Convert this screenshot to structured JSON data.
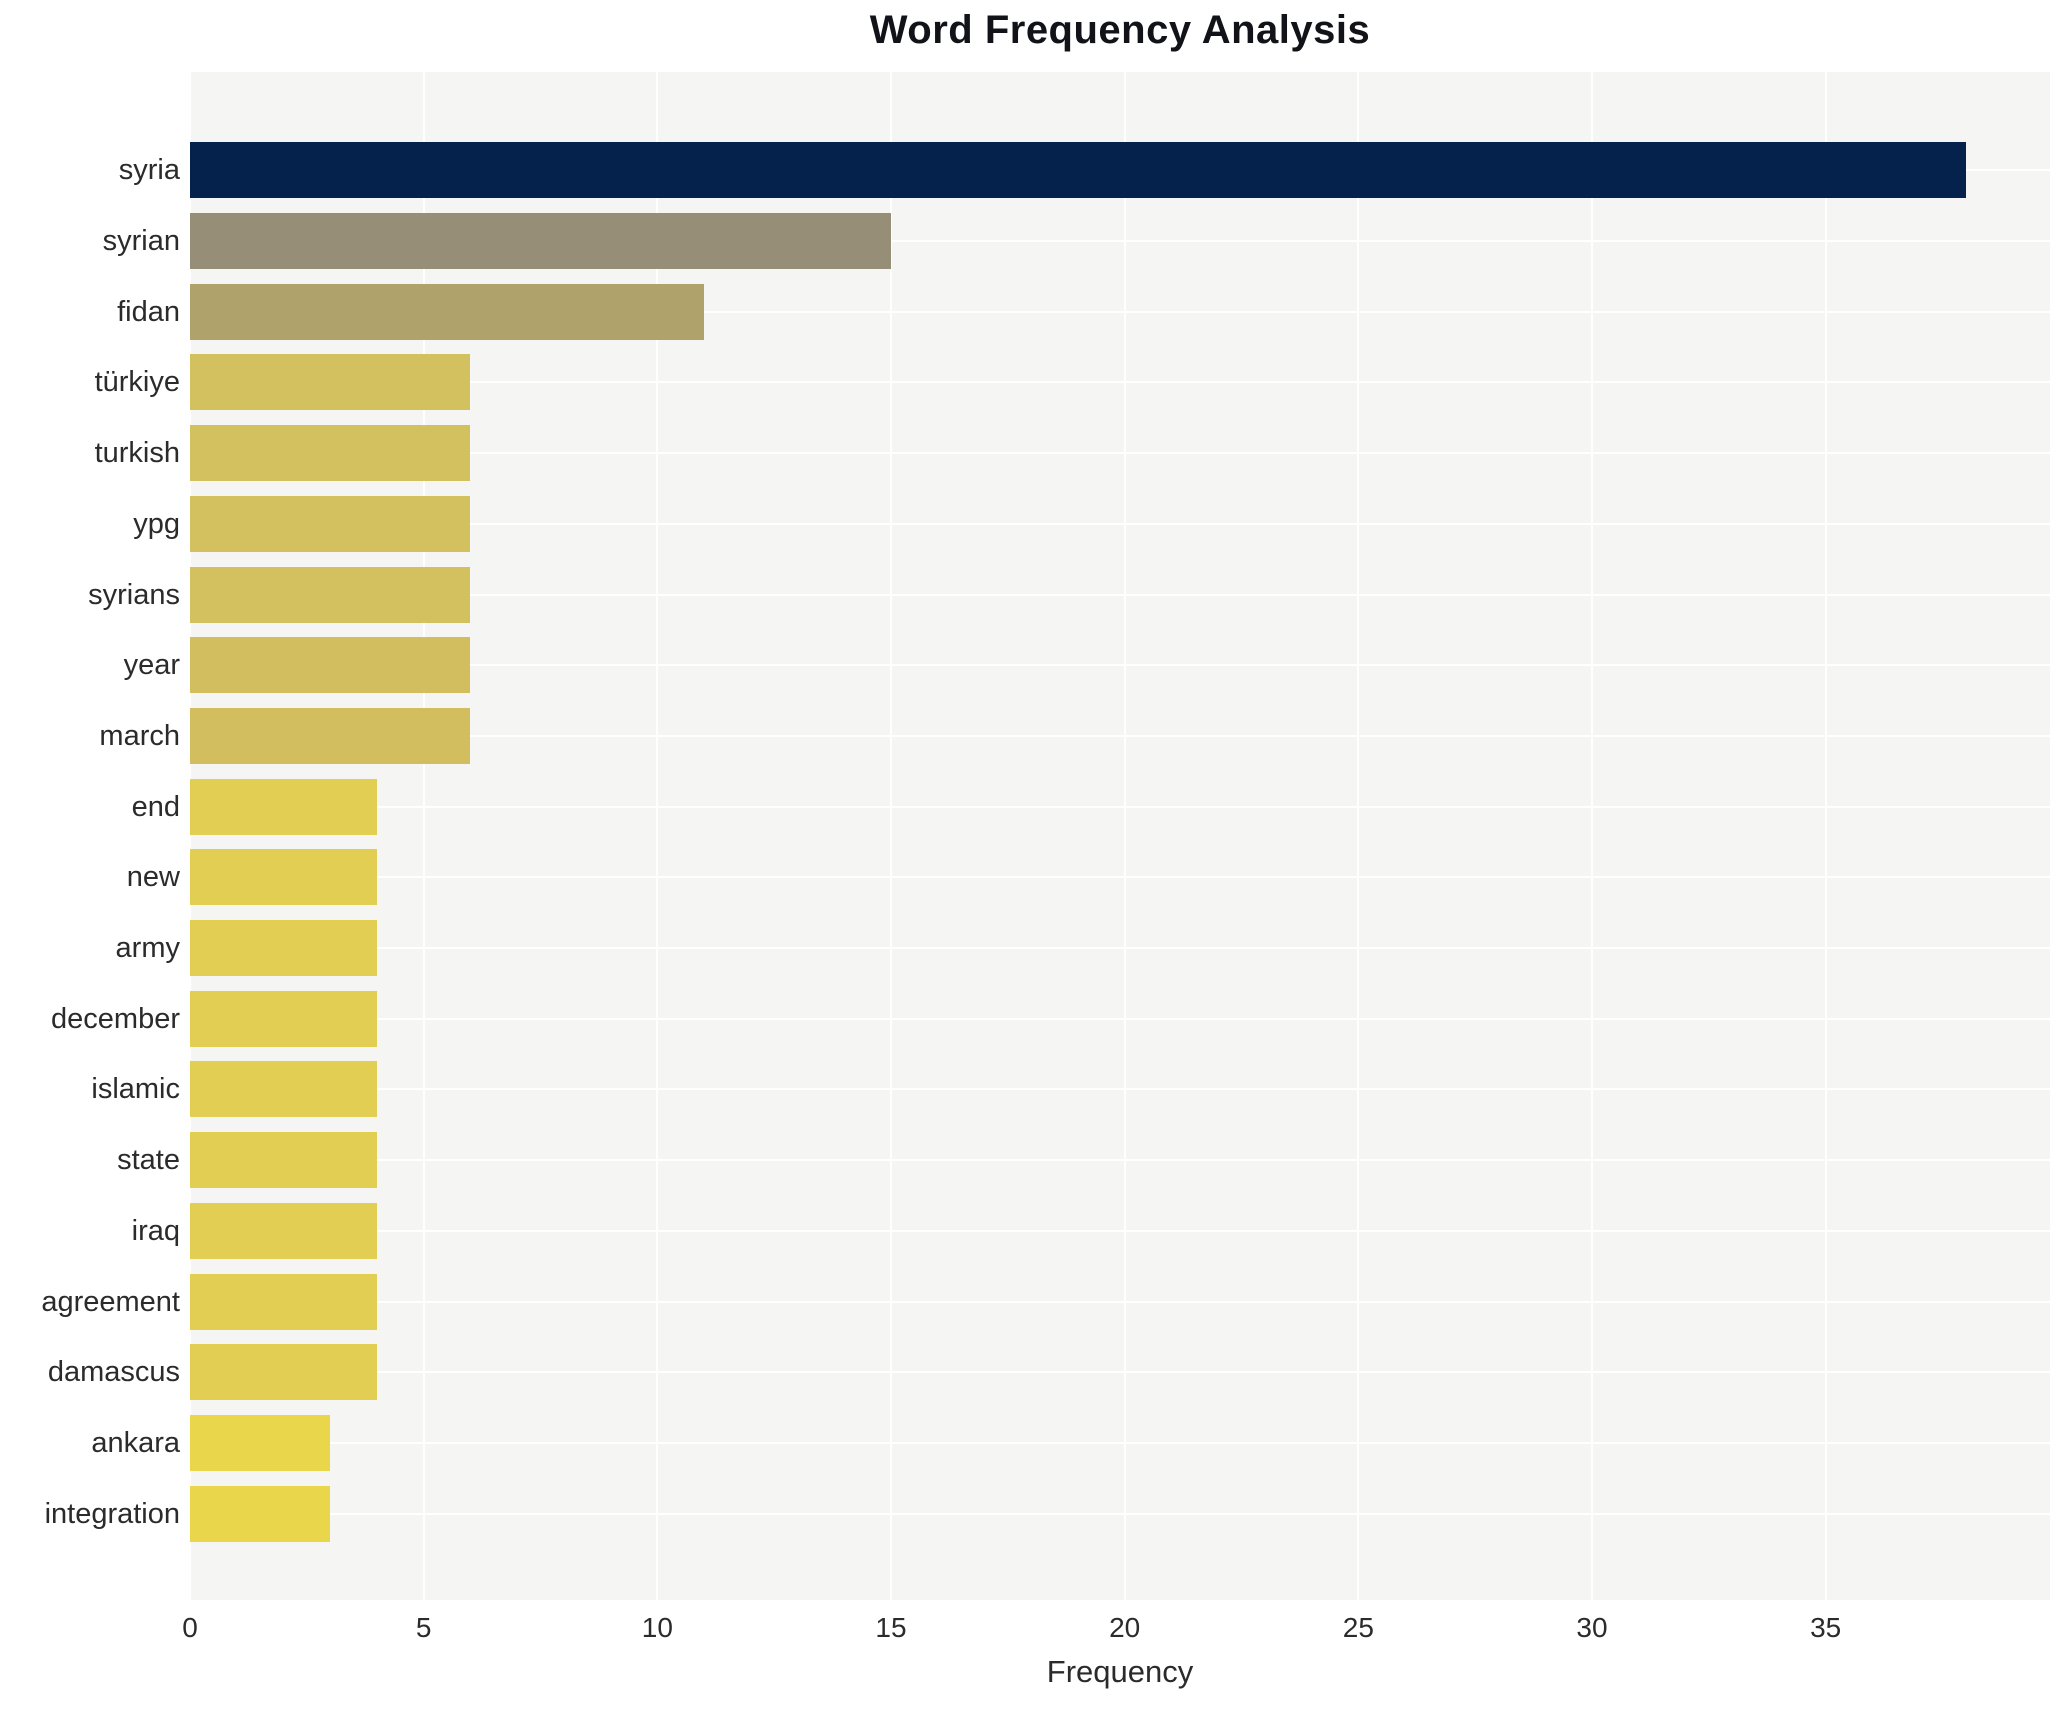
{
  "chart_data": {
    "type": "bar",
    "orientation": "horizontal",
    "title": "Word Frequency Analysis",
    "xlabel": "Frequency",
    "ylabel": "",
    "categories": [
      "syria",
      "syrian",
      "fidan",
      "türkiye",
      "turkish",
      "ypg",
      "syrians",
      "year",
      "march",
      "end",
      "new",
      "army",
      "december",
      "islamic",
      "state",
      "iraq",
      "agreement",
      "damascus",
      "ankara",
      "integration"
    ],
    "values": [
      38,
      15,
      11,
      6,
      6,
      6,
      6,
      6,
      6,
      4,
      4,
      4,
      4,
      4,
      4,
      4,
      4,
      4,
      3,
      3
    ],
    "bar_colors": [
      "#05224C",
      "#968E76",
      "#AFA26B",
      "#D3C05E",
      "#D3C05E",
      "#D3C05E",
      "#D3C05E",
      "#D2BE5E",
      "#D2BE5E",
      "#E2CE52",
      "#E2CE52",
      "#E2CE52",
      "#E2CE52",
      "#E2CE52",
      "#E2CE52",
      "#E2CE52",
      "#E2CE52",
      "#E2CE52",
      "#EAD64B",
      "#EAD64B"
    ],
    "xticks": [
      0,
      5,
      10,
      15,
      20,
      25,
      30,
      35
    ],
    "xlim": [
      0,
      39.8
    ],
    "grid": true,
    "grid_color": "#ffffff",
    "plot_background": "#f5f5f3",
    "page_background": "#ffffff",
    "legend": false,
    "colormap_note": "cividis-style: highest frequency dark navy, lowest bright yellow"
  }
}
